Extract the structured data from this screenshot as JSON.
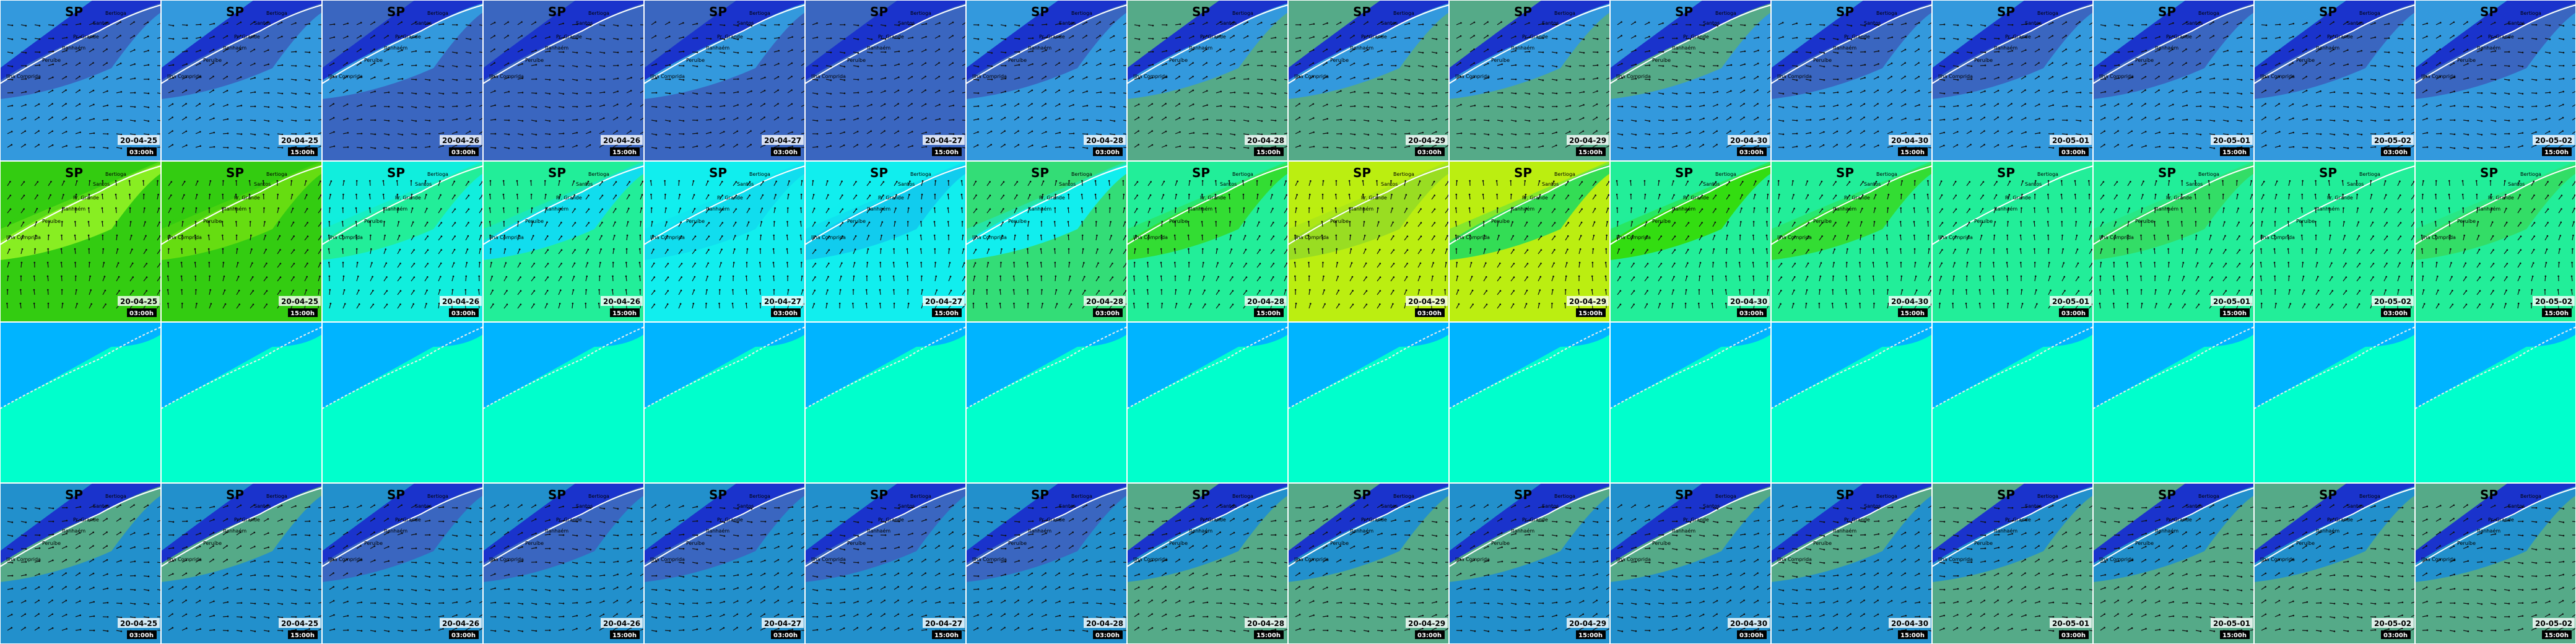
{
  "title": "SP",
  "places": [
    "Bertioga",
    "Santos",
    "Pr. Grande",
    "Itanhaém",
    "Peruíbe",
    "Ilha Comprida"
  ],
  "frames": [
    {
      "date": "20-04-25",
      "time": "03:00h"
    },
    {
      "date": "20-04-25",
      "time": "15:00h"
    },
    {
      "date": "20-04-26",
      "time": "03:00h"
    },
    {
      "date": "20-04-26",
      "time": "15:00h"
    },
    {
      "date": "20-04-27",
      "time": "03:00h"
    },
    {
      "date": "20-04-27",
      "time": "15:00h"
    },
    {
      "date": "20-04-28",
      "time": "03:00h"
    },
    {
      "date": "20-04-28",
      "time": "15:00h"
    },
    {
      "date": "20-04-29",
      "time": "03:00h"
    },
    {
      "date": "20-04-29",
      "time": "15:00h"
    },
    {
      "date": "20-04-30",
      "time": "03:00h"
    },
    {
      "date": "20-04-30",
      "time": "15:00h"
    },
    {
      "date": "20-05-01",
      "time": "03:00h"
    },
    {
      "date": "20-05-01",
      "time": "15:00h"
    },
    {
      "date": "20-05-02",
      "time": "03:00h"
    },
    {
      "date": "20-05-02",
      "time": "15:00h"
    }
  ],
  "rows": [
    {
      "labels": true,
      "arrows": true,
      "colors": [
        [
          "#3399dd",
          "#3a66c0"
        ],
        [
          "#3399dd",
          "#3a66c0"
        ],
        [
          "#3a66c0",
          "#3399dd"
        ],
        [
          "#3a66c0",
          "#3a66c0"
        ],
        [
          "#3a66c0",
          "#3399dd"
        ],
        [
          "#3a66c0",
          "#3a66c0"
        ],
        [
          "#3399dd",
          "#3a66c0"
        ],
        [
          "#55aa88",
          "#3399dd"
        ],
        [
          "#55aa88",
          "#3399dd"
        ],
        [
          "#55aa88",
          "#3399dd"
        ],
        [
          "#3399dd",
          "#55aa88"
        ],
        [
          "#3399dd",
          "#3a66c0"
        ],
        [
          "#3399dd",
          "#3a66c0"
        ],
        [
          "#3399dd",
          "#3a66c0"
        ],
        [
          "#3399dd",
          "#3a66c0"
        ],
        [
          "#3399dd",
          "#3a66c0"
        ]
      ]
    },
    {
      "labels": true,
      "arrows": true,
      "colors": [
        [
          "#33cc11",
          "#88ee22"
        ],
        [
          "#33cc11",
          "#66dd11"
        ],
        [
          "#11eedd",
          "#22ee99"
        ],
        [
          "#22ee99",
          "#11ddee"
        ],
        [
          "#11eeee",
          "#11ddee"
        ],
        [
          "#11eeee",
          "#11ccee"
        ],
        [
          "#33dd77",
          "#11eeee"
        ],
        [
          "#22ee99",
          "#33dd33"
        ],
        [
          "#bbee11",
          "#99dd22"
        ],
        [
          "#bbee11",
          "#33dd55"
        ],
        [
          "#22ee99",
          "#33dd11"
        ],
        [
          "#22ee99",
          "#33dd33"
        ],
        [
          "#22ee99",
          "#22ee99"
        ],
        [
          "#22ee99",
          "#33dd66"
        ],
        [
          "#22ee99",
          "#22ee99"
        ],
        [
          "#22ee99",
          "#33dd66"
        ]
      ]
    },
    {
      "labels": false,
      "arrows": false,
      "colors": [
        [
          "#00ffcc",
          "#00b4ff"
        ],
        [
          "#00ffcc",
          "#00b4ff"
        ],
        [
          "#00ffcc",
          "#00b4ff"
        ],
        [
          "#00ffcc",
          "#00b4ff"
        ],
        [
          "#00ffcc",
          "#00b4ff"
        ],
        [
          "#00ffcc",
          "#00b4ff"
        ],
        [
          "#00ffcc",
          "#00b4ff"
        ],
        [
          "#00ffcc",
          "#00b4ff"
        ],
        [
          "#00ffcc",
          "#00b4ff"
        ],
        [
          "#00ffcc",
          "#00b4ff"
        ],
        [
          "#00ffcc",
          "#00b4ff"
        ],
        [
          "#00ffcc",
          "#00b4ff"
        ],
        [
          "#00ffcc",
          "#00b4ff"
        ],
        [
          "#00ffcc",
          "#00b4ff"
        ],
        [
          "#00ffcc",
          "#00b4ff"
        ],
        [
          "#00ffcc",
          "#00b4ff"
        ]
      ]
    },
    {
      "labels": true,
      "arrows": true,
      "colors": [
        [
          "#2290cc",
          "#55aa88"
        ],
        [
          "#2290cc",
          "#55aa88"
        ],
        [
          "#2290cc",
          "#3a66c0"
        ],
        [
          "#2290cc",
          "#3a66c0"
        ],
        [
          "#2290cc",
          "#3a66c0"
        ],
        [
          "#2290cc",
          "#3a66c0"
        ],
        [
          "#2290cc",
          "#3a66c0"
        ],
        [
          "#55aa88",
          "#2290cc"
        ],
        [
          "#55aa88",
          "#2290cc"
        ],
        [
          "#2290cc",
          "#55aa88"
        ],
        [
          "#2290cc",
          "#55aa88"
        ],
        [
          "#2290cc",
          "#55aa88"
        ],
        [
          "#55aa88",
          "#2290cc"
        ],
        [
          "#55aa88",
          "#2290cc"
        ],
        [
          "#55aa88",
          "#2290cc"
        ],
        [
          "#55aa88",
          "#2290cc"
        ]
      ]
    }
  ]
}
